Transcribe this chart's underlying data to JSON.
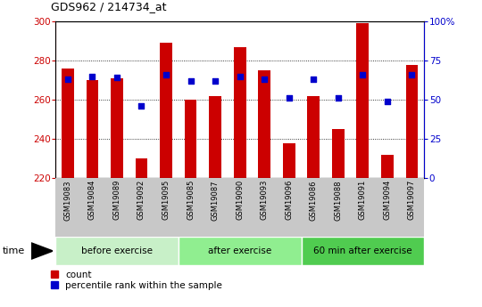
{
  "title": "GDS962 / 214734_at",
  "categories": [
    "GSM19083",
    "GSM19084",
    "GSM19089",
    "GSM19092",
    "GSM19095",
    "GSM19085",
    "GSM19087",
    "GSM19090",
    "GSM19093",
    "GSM19096",
    "GSM19086",
    "GSM19088",
    "GSM19091",
    "GSM19094",
    "GSM19097"
  ],
  "bar_values": [
    276,
    270,
    271,
    230,
    289,
    260,
    262,
    287,
    275,
    238,
    262,
    245,
    299,
    232,
    278
  ],
  "percentile_values": [
    63,
    65,
    64,
    46,
    66,
    62,
    62,
    65,
    63,
    51,
    63,
    51,
    66,
    49,
    66
  ],
  "groups": [
    {
      "label": "before exercise",
      "start": 0,
      "end": 5
    },
    {
      "label": "after exercise",
      "start": 5,
      "end": 10
    },
    {
      "label": "60 min after exercise",
      "start": 10,
      "end": 15
    }
  ],
  "bar_color": "#cc0000",
  "dot_color": "#0000cc",
  "ylim_left": [
    220,
    300
  ],
  "ylim_right": [
    0,
    100
  ],
  "yticks_left": [
    220,
    240,
    260,
    280,
    300
  ],
  "yticks_right": [
    0,
    25,
    50,
    75,
    100
  ],
  "ytick_labels_right": [
    "0",
    "25",
    "50",
    "75",
    "100%"
  ],
  "background_color": "#ffffff",
  "plot_bg_color": "#ffffff",
  "axis_tick_color_left": "#cc0000",
  "axis_tick_color_right": "#0000cc",
  "bar_width": 0.5,
  "legend_count_label": "count",
  "legend_pct_label": "percentile rank within the sample",
  "xlabel_area_color": "#c8c8c8",
  "group_color_1": "#c8f0c8",
  "group_color_2": "#90ee90",
  "group_color_3": "#50cc50"
}
